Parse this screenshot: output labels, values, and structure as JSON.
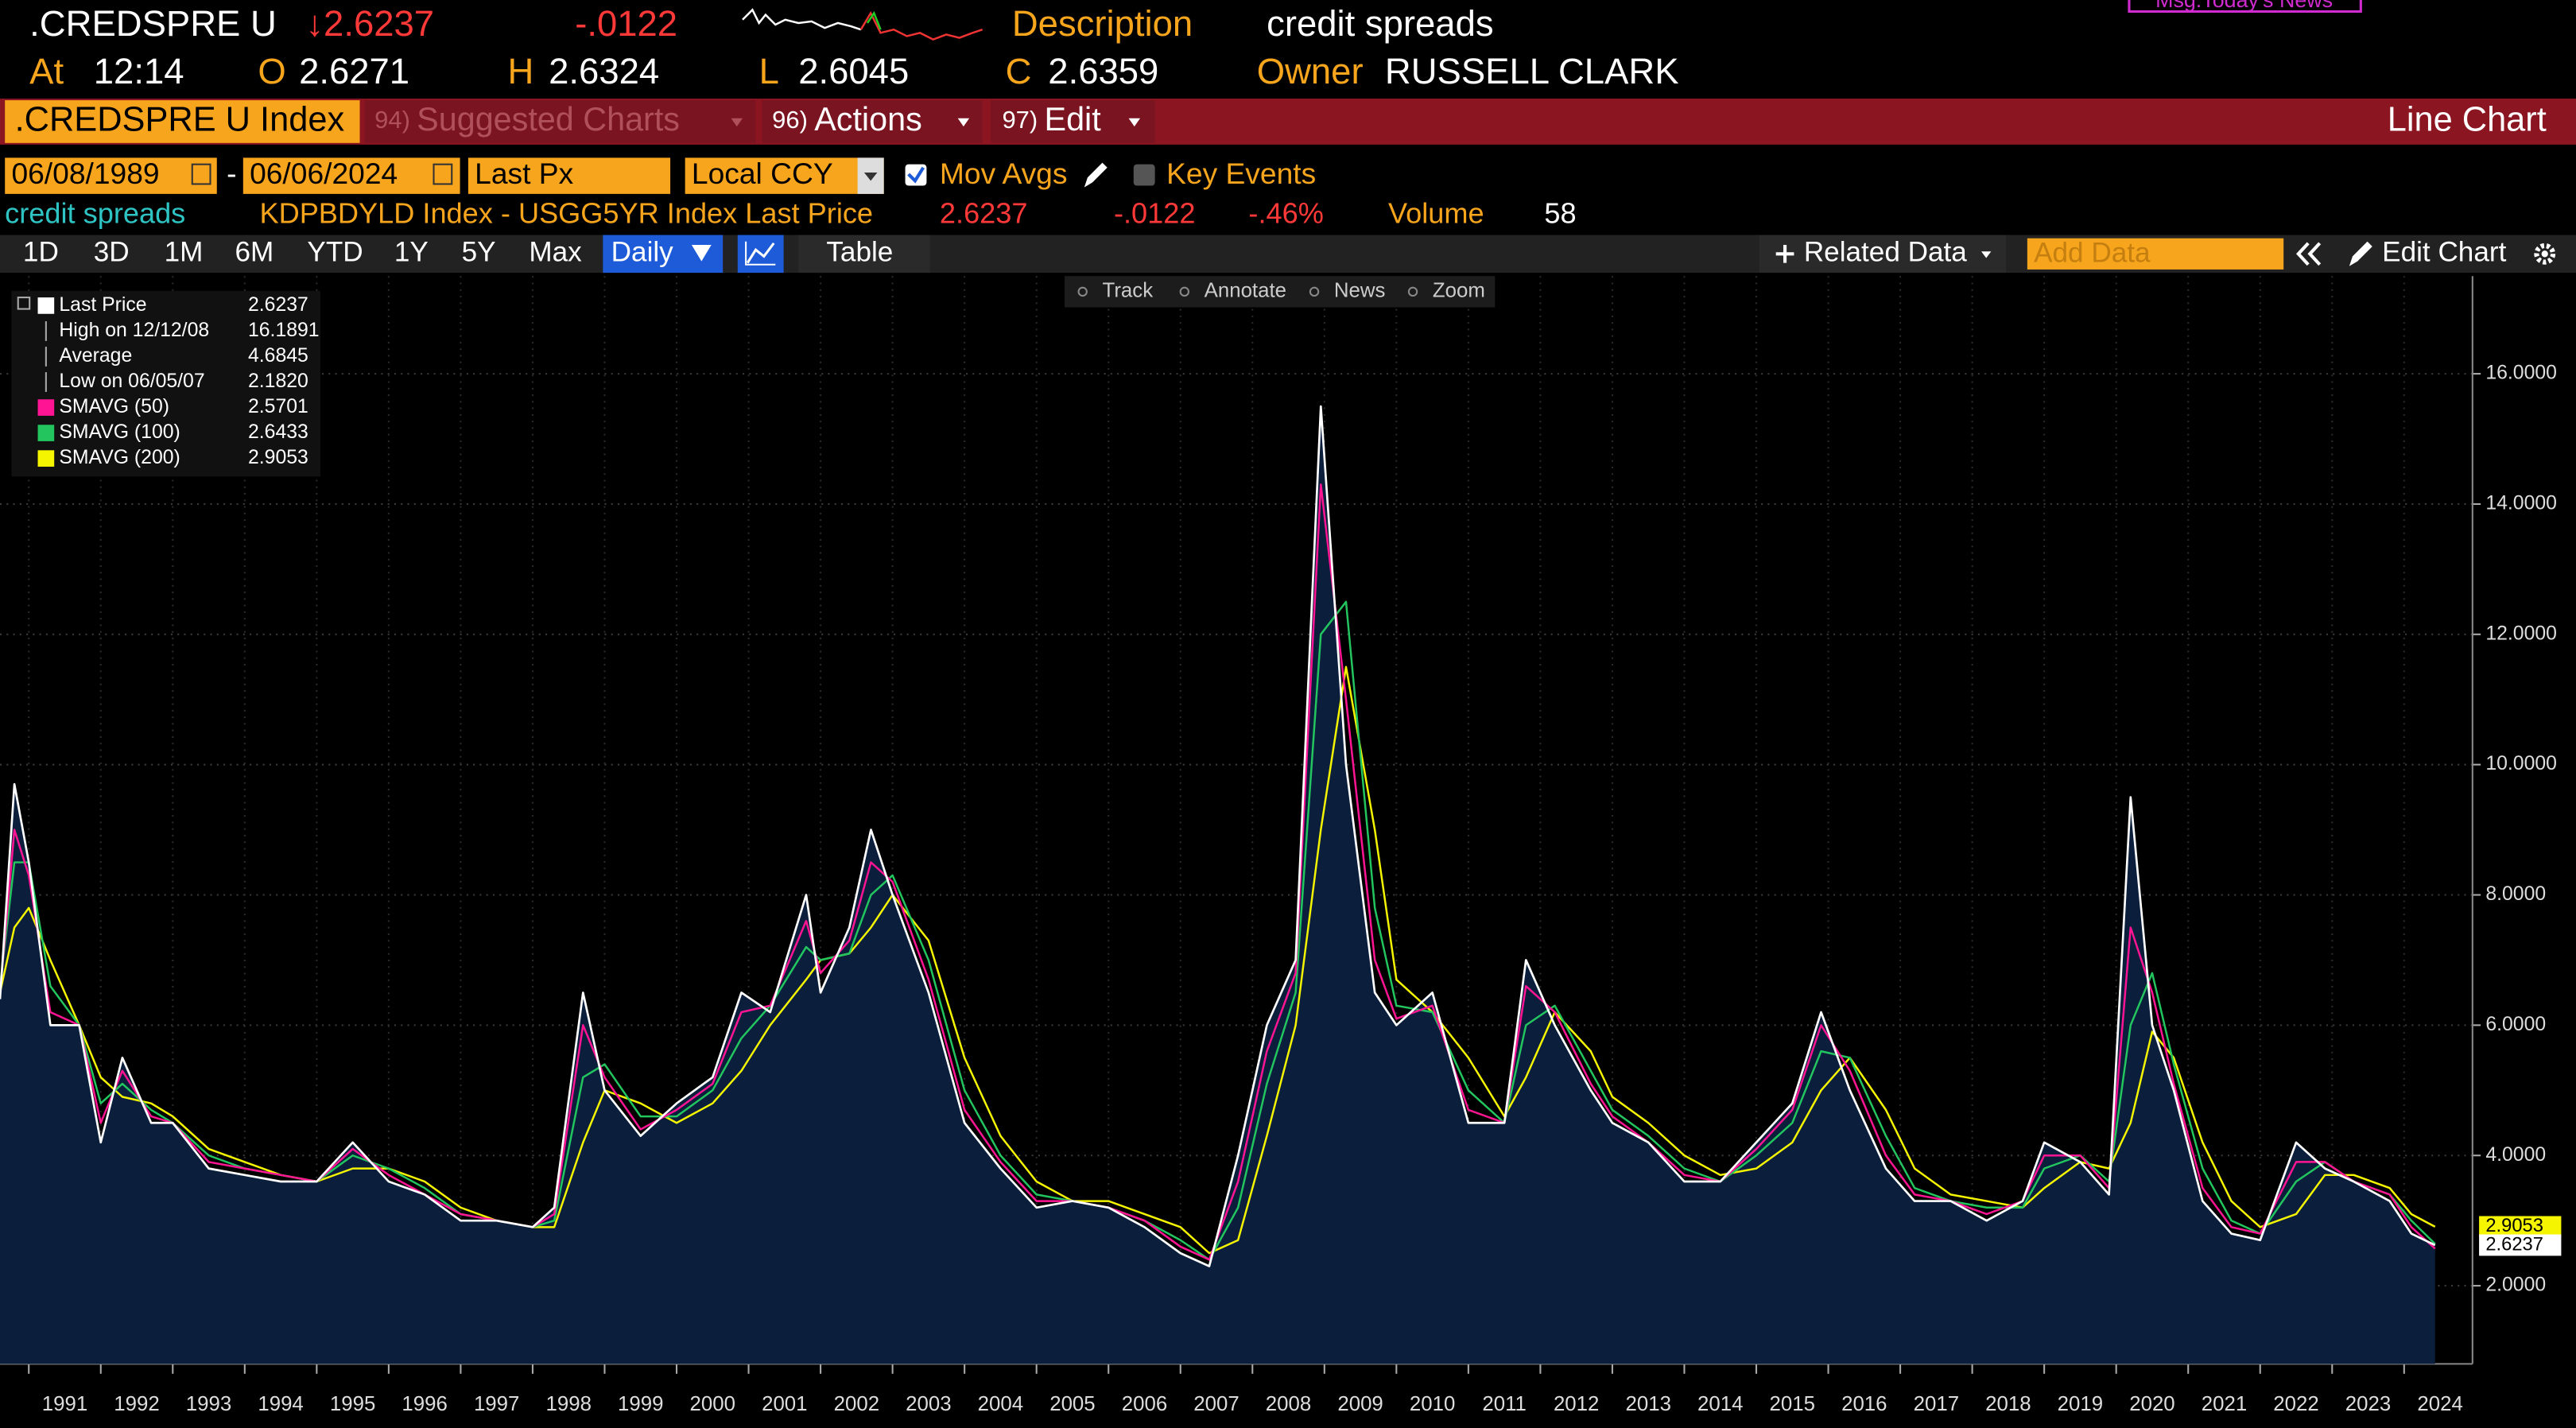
{
  "header": {
    "ticker": ".CREDSPRE U",
    "price": "↓2.6237",
    "change": "-.0122",
    "description_label": "Description",
    "description": "credit spreads",
    "news": "Msg:Today's News",
    "at_label": "At",
    "time": "12:14",
    "open_label": "O",
    "open": "2.6271",
    "high_label": "H",
    "high": "2.6324",
    "low_label": "L",
    "low": "2.6045",
    "close_label": "C",
    "close": "2.6359",
    "owner_label": "Owner",
    "owner": "RUSSELL CLARK"
  },
  "toolbar": {
    "security": ".CREDSPRE U Index",
    "menus": [
      {
        "num": "94)",
        "label": "Suggested Charts"
      },
      {
        "num": "96)",
        "label": "Actions"
      },
      {
        "num": "97)",
        "label": "Edit"
      }
    ],
    "view": "Line Chart"
  },
  "controls": {
    "start_date": "06/08/1989",
    "separator": "-",
    "end_date": "06/06/2024",
    "field": "Last Px",
    "currency": "Local CCY",
    "mov_avgs": "Mov Avgs",
    "key_events": "Key Events"
  },
  "info": {
    "name": "credit spreads",
    "security": "KDPBDYLD Index - USGG5YR Index Last Price",
    "last": "2.6237",
    "change": "-.0122",
    "change_pct": "-.46%",
    "volume_label": "Volume",
    "volume": "58"
  },
  "period_bar": {
    "periods": [
      "1D",
      "3D",
      "1M",
      "6M",
      "YTD",
      "1Y",
      "5Y",
      "Max"
    ],
    "frequency": "Daily",
    "table": "Table",
    "related": "Related Data",
    "add_data": "Add Data",
    "edit_chart": "Edit Chart"
  },
  "chart_tools": [
    "Track",
    "Annotate",
    "News",
    "Zoom"
  ],
  "chart_data": {
    "type": "line",
    "area_color": "#0b1f3d",
    "grid": true,
    "xlim": [
      1990.6,
      2024.95
    ],
    "xticks": [
      1991,
      1992,
      1993,
      1994,
      1995,
      1996,
      1997,
      1998,
      1999,
      2000,
      2001,
      2002,
      2003,
      2004,
      2005,
      2006,
      2007,
      2008,
      2009,
      2010,
      2011,
      2012,
      2013,
      2014,
      2015,
      2016,
      2017,
      2018,
      2019,
      2020,
      2021,
      2022,
      2023,
      2024
    ],
    "ylim": [
      0.8,
      17.5
    ],
    "yticks": [
      {
        "value": 2,
        "label": "2.0000"
      },
      {
        "value": 4,
        "label": "4.0000"
      },
      {
        "value": 6,
        "label": "6.0000"
      },
      {
        "value": 8,
        "label": "8.0000"
      },
      {
        "value": 10,
        "label": "10.0000"
      },
      {
        "value": 12,
        "label": "12.0000"
      },
      {
        "value": 14,
        "label": "14.0000"
      },
      {
        "value": 16,
        "label": "16.0000"
      }
    ],
    "x": [
      1990.6,
      1990.8,
      1991.0,
      1991.3,
      1991.7,
      1992.0,
      1992.3,
      1992.7,
      1993.0,
      1993.5,
      1994.0,
      1994.5,
      1995.0,
      1995.5,
      1996.0,
      1996.5,
      1997.0,
      1997.5,
      1998.0,
      1998.3,
      1998.7,
      1999.0,
      1999.5,
      2000.0,
      2000.5,
      2000.9,
      2001.3,
      2001.8,
      2002.0,
      2002.4,
      2002.7,
      2003.0,
      2003.5,
      2004.0,
      2004.5,
      2005.0,
      2005.5,
      2006.0,
      2006.5,
      2007.0,
      2007.4,
      2007.8,
      2008.2,
      2008.6,
      2008.95,
      2009.3,
      2009.7,
      2010.0,
      2010.5,
      2011.0,
      2011.5,
      2011.8,
      2012.2,
      2012.7,
      2013.0,
      2013.5,
      2014.0,
      2014.5,
      2015.0,
      2015.5,
      2015.9,
      2016.3,
      2016.8,
      2017.2,
      2017.7,
      2018.2,
      2018.7,
      2019.0,
      2019.5,
      2019.9,
      2020.2,
      2020.5,
      2020.8,
      2021.2,
      2021.6,
      2022.0,
      2022.5,
      2022.9,
      2023.3,
      2023.8,
      2024.1,
      2024.43
    ],
    "series": [
      {
        "name": "Last Price",
        "color": "#ffffff",
        "legend_value": "2.6237",
        "values": [
          6.4,
          9.7,
          8.5,
          6.0,
          6.0,
          4.2,
          5.5,
          4.5,
          4.5,
          3.8,
          3.7,
          3.6,
          3.6,
          4.2,
          3.6,
          3.4,
          3.0,
          3.0,
          2.9,
          3.2,
          6.5,
          5.0,
          4.3,
          4.8,
          5.2,
          6.5,
          6.2,
          8.0,
          6.5,
          7.5,
          9.0,
          8.0,
          6.5,
          4.5,
          3.8,
          3.2,
          3.3,
          3.2,
          2.9,
          2.5,
          2.3,
          4.0,
          6.0,
          7.0,
          15.5,
          10.0,
          6.5,
          6.0,
          6.5,
          4.5,
          4.5,
          7.0,
          6.0,
          5.0,
          4.5,
          4.2,
          3.6,
          3.6,
          4.2,
          4.8,
          6.2,
          5.0,
          3.8,
          3.3,
          3.3,
          3.0,
          3.3,
          4.2,
          3.9,
          3.4,
          9.5,
          6.0,
          5.0,
          3.3,
          2.8,
          2.7,
          4.2,
          3.8,
          3.6,
          3.3,
          2.8,
          2.6237
        ]
      },
      {
        "name": "SMAVG (50)",
        "color": "#ff1493",
        "legend_value": "2.5701",
        "values": [
          6.5,
          9.0,
          8.3,
          6.2,
          6.0,
          4.5,
          5.3,
          4.6,
          4.5,
          3.9,
          3.8,
          3.7,
          3.6,
          4.1,
          3.7,
          3.4,
          3.1,
          3.0,
          2.9,
          3.1,
          6.0,
          5.2,
          4.4,
          4.7,
          5.1,
          6.2,
          6.3,
          7.6,
          6.8,
          7.3,
          8.5,
          8.2,
          6.7,
          4.7,
          3.9,
          3.3,
          3.3,
          3.2,
          3.0,
          2.6,
          2.4,
          3.6,
          5.6,
          6.8,
          14.3,
          11.0,
          7.0,
          6.1,
          6.3,
          4.7,
          4.5,
          6.6,
          6.2,
          5.1,
          4.6,
          4.2,
          3.7,
          3.6,
          4.1,
          4.7,
          6.0,
          5.3,
          4.0,
          3.4,
          3.3,
          3.1,
          3.3,
          4.0,
          4.0,
          3.5,
          7.5,
          6.5,
          5.1,
          3.5,
          2.9,
          2.8,
          3.9,
          3.9,
          3.6,
          3.4,
          2.9,
          2.5701
        ]
      },
      {
        "name": "SMAVG (100)",
        "color": "#22c55e",
        "legend_value": "2.6433",
        "values": [
          6.6,
          8.5,
          8.5,
          6.6,
          6.0,
          4.8,
          5.1,
          4.7,
          4.5,
          4.0,
          3.8,
          3.7,
          3.6,
          4.0,
          3.8,
          3.5,
          3.1,
          3.0,
          2.9,
          3.0,
          5.2,
          5.4,
          4.6,
          4.6,
          5.0,
          5.8,
          6.3,
          7.2,
          7.0,
          7.1,
          8.0,
          8.3,
          7.0,
          5.0,
          4.0,
          3.4,
          3.3,
          3.2,
          3.0,
          2.7,
          2.4,
          3.2,
          5.1,
          6.5,
          12.0,
          12.5,
          7.8,
          6.3,
          6.2,
          5.0,
          4.5,
          6.0,
          6.3,
          5.3,
          4.7,
          4.3,
          3.8,
          3.6,
          4.0,
          4.5,
          5.6,
          5.5,
          4.3,
          3.5,
          3.3,
          3.2,
          3.2,
          3.8,
          4.0,
          3.6,
          6.0,
          6.8,
          5.4,
          3.8,
          3.0,
          2.8,
          3.6,
          3.9,
          3.6,
          3.4,
          3.0,
          2.6433
        ]
      },
      {
        "name": "SMAVG (200)",
        "color": "#f5f500",
        "legend_value": "2.9053",
        "values": [
          6.5,
          7.5,
          7.8,
          7.0,
          6.0,
          5.2,
          4.9,
          4.8,
          4.6,
          4.1,
          3.9,
          3.7,
          3.6,
          3.8,
          3.8,
          3.6,
          3.2,
          3.0,
          2.9,
          2.9,
          4.2,
          5.0,
          4.8,
          4.5,
          4.8,
          5.3,
          6.0,
          6.7,
          7.0,
          7.1,
          7.5,
          8.0,
          7.3,
          5.5,
          4.3,
          3.6,
          3.3,
          3.3,
          3.1,
          2.9,
          2.5,
          2.7,
          4.3,
          6.0,
          9.0,
          11.5,
          9.0,
          6.7,
          6.2,
          5.5,
          4.6,
          5.2,
          6.2,
          5.6,
          4.9,
          4.5,
          4.0,
          3.7,
          3.8,
          4.2,
          5.0,
          5.5,
          4.7,
          3.8,
          3.4,
          3.3,
          3.2,
          3.5,
          3.9,
          3.8,
          4.5,
          5.9,
          5.5,
          4.2,
          3.3,
          2.9,
          3.1,
          3.7,
          3.7,
          3.5,
          3.1,
          2.9053
        ]
      }
    ],
    "stats": [
      {
        "label": "High on 12/12/08",
        "value": "16.1891"
      },
      {
        "label": "Average",
        "value": "4.6845"
      },
      {
        "label": "Low on 06/05/07",
        "value": "2.1820"
      }
    ]
  }
}
